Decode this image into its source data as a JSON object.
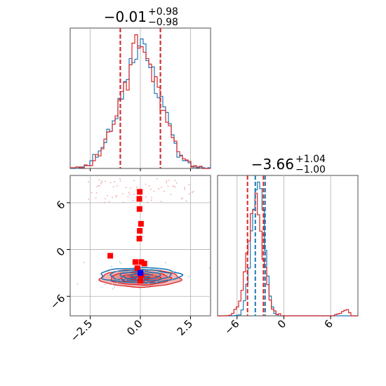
{
  "chart_data": {
    "type": "corner",
    "parameters": [
      {
        "title_main": "−0.01",
        "title_sup": "+0.98",
        "title_sub": "−0.98",
        "range": [
          -3.5,
          3.5
        ],
        "ticks": [
          -2.5,
          0.0,
          2.5
        ],
        "tick_labels": [
          "−2.5",
          "0.0",
          "2.5"
        ],
        "quantiles": {
          "red": [
            -1.0,
            1.0
          ],
          "blue": [
            -1.0,
            1.0
          ]
        }
      },
      {
        "title_main": "−3.66",
        "title_sup": "+1.04",
        "title_sub": "−1.00",
        "range": [
          -8.5,
          9.5
        ],
        "ticks": [
          -6,
          0,
          6
        ],
        "tick_labels": [
          "−6",
          "0",
          "6"
        ],
        "quantiles": {
          "red": [
            -4.66,
            -2.62
          ],
          "blue": [
            -3.66,
            -2.4
          ]
        }
      }
    ],
    "series": [
      {
        "color": "#1f77b4",
        "mean": [
          0.0,
          -3.3
        ],
        "std": [
          1.0,
          0.8
        ]
      },
      {
        "color": "#d62728",
        "mean": [
          0.0,
          -3.7
        ],
        "std": [
          1.0,
          1.0
        ],
        "outliers_y": [
          7.5
        ]
      }
    ],
    "scatter_points_red": [
      [
        -0.03,
        7.4
      ],
      [
        -0.05,
        6.5
      ],
      [
        -0.04,
        5.2
      ],
      [
        0.03,
        3.3
      ],
      [
        -0.03,
        2.4
      ],
      [
        -0.05,
        1.4
      ],
      [
        -1.5,
        -0.8
      ],
      [
        -0.25,
        -1.6
      ],
      [
        0.05,
        -1.6
      ],
      [
        0.2,
        -1.8
      ],
      [
        -0.15,
        -2.4
      ],
      [
        0.05,
        -3.3
      ],
      [
        0.0,
        -4.0
      ]
    ],
    "scatter_points_blue": [
      [
        0.0,
        -3.0
      ]
    ],
    "grid": true,
    "legend": "none"
  }
}
